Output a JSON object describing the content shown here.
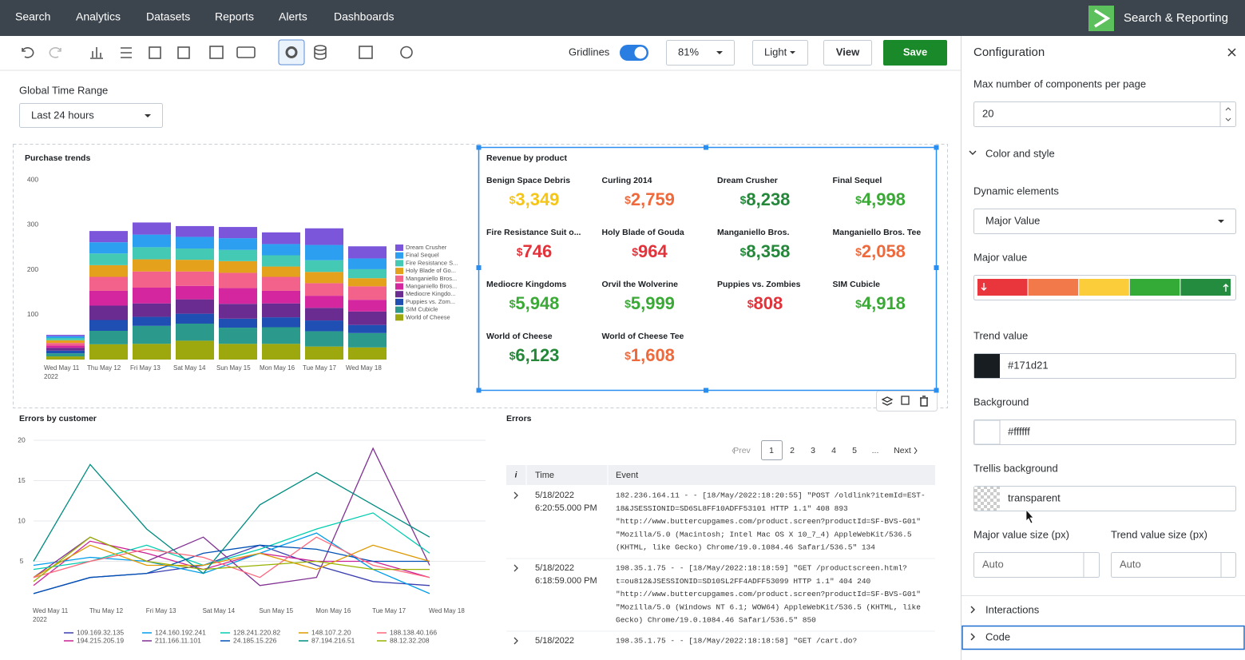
{
  "nav": {
    "items": [
      "Search",
      "Analytics",
      "Datasets",
      "Reports",
      "Alerts",
      "Dashboards"
    ],
    "app_title": "Search & Reporting"
  },
  "toolbar": {
    "gridlines_label": "Gridlines",
    "zoom": "81%",
    "theme": "Light",
    "view": "View",
    "save": "Save"
  },
  "time_range": {
    "label": "Global Time Range",
    "value": "Last 24 hours"
  },
  "purchase_trends": {
    "type": "bar",
    "stacked": true,
    "title": "Purchase trends",
    "categories": [
      "Wed May 11",
      "Thu May 12",
      "Fri May 13",
      "Sat May 14",
      "Sun May 15",
      "Mon May 16",
      "Tue May 17",
      "Wed May 18"
    ],
    "year_label": "2022",
    "ylim": [
      0,
      400
    ],
    "yticks": [
      100,
      200,
      300,
      400
    ],
    "grid": false,
    "series": [
      {
        "name": "Dream Crusher",
        "color": "#7b56db",
        "values": [
          3,
          25,
          27,
          24,
          25,
          26,
          37,
          27
        ]
      },
      {
        "name": "Final Sequel",
        "color": "#2d9ff0",
        "values": [
          4,
          25,
          28,
          26,
          26,
          25,
          34,
          24
        ]
      },
      {
        "name": "Fire Resistance S...",
        "color": "#44c9b5",
        "values": [
          5,
          26,
          27,
          25,
          25,
          25,
          26,
          20
        ]
      },
      {
        "name": "Holy Blade of Go...",
        "color": "#e4a11b",
        "values": [
          6,
          26,
          27,
          26,
          26,
          23,
          25,
          18
        ]
      },
      {
        "name": "Manganiello Bros...",
        "color": "#f2628a",
        "values": [
          6,
          31,
          36,
          32,
          34,
          31,
          28,
          30
        ]
      },
      {
        "name": "Manganiello Bros...",
        "color": "#d4279f",
        "values": [
          5,
          33,
          35,
          30,
          35,
          28,
          27,
          26
        ]
      },
      {
        "name": "Mediocre Kingdo...",
        "color": "#6a2c91",
        "values": [
          6,
          32,
          30,
          32,
          33,
          31,
          28,
          30
        ]
      },
      {
        "name": "Puppies vs. Zom...",
        "color": "#1f4fb3",
        "values": [
          6,
          24,
          20,
          22,
          20,
          22,
          24,
          18
        ]
      },
      {
        "name": "SIM Cubicle",
        "color": "#2b9a8c",
        "values": [
          7,
          30,
          40,
          38,
          36,
          37,
          34,
          32
        ]
      },
      {
        "name": "World of Cheese",
        "color": "#9ca80e",
        "values": [
          7,
          34,
          35,
          42,
          35,
          35,
          29,
          27
        ]
      }
    ]
  },
  "revenue": {
    "title": "Revenue by product",
    "currency": "$",
    "items": [
      {
        "name": "Benign Space Debris",
        "amount": "3,349",
        "color": "#f5c518"
      },
      {
        "name": "Curling 2014",
        "amount": "2,759",
        "color": "#ee6a3c"
      },
      {
        "name": "Dream Crusher",
        "amount": "8,238",
        "color": "#24873a"
      },
      {
        "name": "Final Sequel",
        "amount": "4,998",
        "color": "#3aa935"
      },
      {
        "name": "Fire Resistance Suit o...",
        "amount": "746",
        "color": "#e2323a"
      },
      {
        "name": "Holy Blade of Gouda",
        "amount": "964",
        "color": "#e2323a"
      },
      {
        "name": "Manganiello Bros.",
        "amount": "8,358",
        "color": "#24873a"
      },
      {
        "name": "Manganiello Bros. Tee",
        "amount": "2,058",
        "color": "#ee6a3c"
      },
      {
        "name": "Mediocre Kingdoms",
        "amount": "5,948",
        "color": "#3aa935"
      },
      {
        "name": "Orvil the Wolverine",
        "amount": "5,999",
        "color": "#3aa935"
      },
      {
        "name": "Puppies vs. Zombies",
        "amount": "808",
        "color": "#e2323a"
      },
      {
        "name": "SIM Cubicle",
        "amount": "4,918",
        "color": "#3aa935"
      },
      {
        "name": "World of Cheese",
        "amount": "6,123",
        "color": "#24873a"
      },
      {
        "name": "World of Cheese Tee",
        "amount": "1,608",
        "color": "#ee6a3c"
      }
    ]
  },
  "errors_by_customer": {
    "type": "line",
    "title": "Errors by customer",
    "categories": [
      "Wed May 11",
      "Thu May 12",
      "Fri May 13",
      "Sat May 14",
      "Sun May 15",
      "Mon May 16",
      "Tue May 17",
      "Wed May 18"
    ],
    "year_label": "2022",
    "ylim": [
      0,
      20
    ],
    "yticks": [
      5,
      10,
      15,
      20
    ],
    "grid": true,
    "series": [
      {
        "name": "109.169.32.135",
        "color": "#3a3fb0",
        "values": [
          1,
          3,
          3.5,
          4.5,
          7,
          4.5,
          2.5,
          2
        ]
      },
      {
        "name": "194.215.205.19",
        "color": "#cb2196",
        "values": [
          2,
          7.5,
          6,
          4,
          6,
          5,
          5,
          3
        ]
      },
      {
        "name": "124.160.192.241",
        "color": "#009ceb",
        "values": [
          4.5,
          5.5,
          5,
          3.5,
          6,
          8.5,
          4,
          1
        ]
      },
      {
        "name": "211.166.11.101",
        "color": "#813193",
        "values": [
          3,
          8,
          5,
          8,
          2,
          3,
          19,
          4.5
        ]
      },
      {
        "name": "128.241.220.82",
        "color": "#00cdaf",
        "values": [
          4,
          5,
          7,
          4.5,
          6.5,
          9,
          11,
          6
        ]
      },
      {
        "name": "24.185.15.226",
        "color": "#0051b5",
        "values": [
          1,
          3,
          3.5,
          6,
          7,
          6.5,
          5,
          5
        ]
      },
      {
        "name": "148.107.2.20",
        "color": "#dd9900",
        "values": [
          3,
          7,
          4.5,
          4.5,
          6,
          4,
          7,
          5
        ]
      },
      {
        "name": "87.194.216.51",
        "color": "#008c80",
        "values": [
          5,
          17,
          9,
          3.5,
          12,
          16,
          12,
          8
        ]
      },
      {
        "name": "188.138.40.166",
        "color": "#ff677b",
        "values": [
          3,
          5,
          6.5,
          5.5,
          3,
          8,
          4.5,
          3
        ]
      },
      {
        "name": "88.12.32.208",
        "color": "#99b100",
        "values": [
          2.5,
          8,
          5,
          4,
          4.5,
          5,
          4,
          4
        ]
      }
    ]
  },
  "errors_table": {
    "title": "Errors",
    "pagination": {
      "prev": "Prev",
      "pages": [
        "1",
        "2",
        "3",
        "4",
        "5"
      ],
      "ellipsis": "...",
      "next": "Next"
    },
    "columns": [
      "i",
      "Time",
      "Event"
    ],
    "rows": [
      {
        "time": [
          "5/18/2022",
          "6:20:55.000 PM"
        ],
        "event": [
          "182.236.164.11 - - [18/May/2022:18:20:55] \"POST /oldlink?itemId=EST-",
          "18&JSESSIONID=SD6SL8FF10ADFF53101 HTTP 1.1\" 408 893",
          "\"http://www.buttercupgames.com/product.screen?productId=SF-BVS-G01\"",
          "\"Mozilla/5.0 (Macintosh; Intel Mac OS X 10_7_4) AppleWebKit/536.5",
          "(KHTML, like Gecko) Chrome/19.0.1084.46 Safari/536.5\" 134"
        ]
      },
      {
        "time": [
          "5/18/2022",
          "6:18:59.000 PM"
        ],
        "event": [
          "198.35.1.75 - - [18/May/2022:18:18:59] \"GET /productscreen.html?",
          "t=ou812&JSESSIONID=SD10SL2FF4ADFF53099 HTTP 1.1\" 404 240",
          "\"http://www.buttercupgames.com/product.screen?productId=SF-BVS-G01\"",
          "\"Mozilla/5.0 (Windows NT 6.1; WOW64) AppleWebKit/536.5 (KHTML, like",
          "Gecko) Chrome/19.0.1084.46 Safari/536.5\" 850"
        ]
      },
      {
        "time": [
          "5/18/2022"
        ],
        "event": [
          "198.35.1.75 - - [18/May/2022:18:18:58] \"GET /cart.do?"
        ]
      }
    ]
  },
  "config": {
    "title": "Configuration",
    "max_components_label": "Max number of components per page",
    "max_components": "20",
    "color_section": "Color and style",
    "dynamic_label": "Dynamic elements",
    "dynamic_value": "Major Value",
    "major_value_label": "Major value",
    "major_value_colors": [
      "#e8363c",
      "#f27a4a",
      "#fbcd3b",
      "#35ab37",
      "#238c3e"
    ],
    "trend_label": "Trend value",
    "trend_value": "#171d21",
    "background_label": "Background",
    "background_value": "#ffffff",
    "trellis_label": "Trellis background",
    "trellis_value": "transparent",
    "major_size_label": "Major value size (px)",
    "major_size": "Auto",
    "trend_size_label": "Trend value size (px)",
    "trend_size": "Auto",
    "interactions": "Interactions",
    "code": "Code"
  }
}
